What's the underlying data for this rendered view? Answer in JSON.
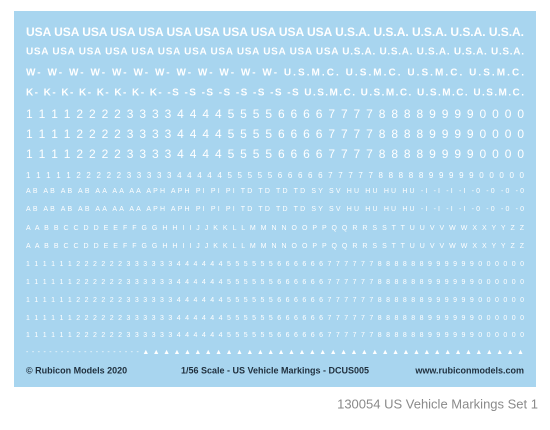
{
  "sheet": {
    "rows": [
      "USA USA USA USA USA USA USA USA USA USA USA U.S.A. U.S.A. U.S.A. U.S.A. U.S.A.",
      "USA USA USA USA USA USA USA USA USA USA USA USA U.S.A. U.S.A. U.S.A. U.S.A. U.S.A.",
      "W- W- W- W- W- W- W- W- W- W- W- W- U.S.M.C. U.S.M.C. U.S.M.C. U.S.M.C.",
      "K- K- K- K- K- K- K- K- -S -S -S -S -S -S -S -S U.S.M.C. U.S.M.C. U.S.M.C. U.S.M.C.",
      "1 1 1 1 2 2 2 2 3 3 3 3 4 4 4 4 5 5 5 5 6 6 6 6 7 7 7 7 8 8 8 8 9 9 9 9 0 0 0 0",
      "1 1 1 1 2 2 2 2 3 3 3 3 4 4 4 4 5 5 5 5 6 6 6 6 7 7 7 7 8 8 8 8 9 9 9 9 0 0 0 0",
      "1 1 1 1 2 2 2 2 3 3 3 3 4 4 4 4 5 5 5 5 6 6 6 6 7 7 7 7 8 8 8 8 9 9 9 9 0 0 0 0",
      "1 1 1 1 1 2 2 2 2 2 3 3 3 3 3 4 4 4 4 4 5 5 5 5 5 6 6 6 6 6 7 7 7 7 7 8 8 8 8 8 9 9 9 9 9 0 0 0 0 0",
      "AB AB AB AB AA AA AA APH APH PI PI PI TD TD TD TD SY SV HU HU HU HU -I -I -I -I -0 -0 -0 -0",
      "AB AB AB AB AA AA AA APH APH PI PI PI TD TD TD TD SY SV HU HU HU HU -I -I -I -I -0 -0 -0 -0",
      "A A B B C C D D E E F F G G H H I I J J K K L L M M N N O O P P Q Q R R S S T T U U V V W W X X Y Y Z Z",
      "A A B B C C D D E E F F G G H H I I J J K K L L M M N N O O P P Q Q R R S S T T U U V V W W X X Y Y Z Z",
      "1 1 1 1 1 1 2 2 2 2 2 2 3 3 3 3 3 3 4 4 4 4 4 4 5 5 5 5 5 5 6 6 6 6 6 6 7 7 7 7 7 7 8 8 8 8 8 8 9 9 9 9 9 9 0 0 0 0 0 0",
      "1 1 1 1 1 1 2 2 2 2 2 2 3 3 3 3 3 3 4 4 4 4 4 4 5 5 5 5 5 5 6 6 6 6 6 6 7 7 7 7 7 7 8 8 8 8 8 8 9 9 9 9 9 9 0 0 0 0 0 0",
      "1 1 1 1 1 1 2 2 2 2 2 2 3 3 3 3 3 3 4 4 4 4 4 4 5 5 5 5 5 5 6 6 6 6 6 6 7 7 7 7 7 7 8 8 8 8 8 8 9 9 9 9 9 9 0 0 0 0 0 0",
      "1 1 1 1 1 1 2 2 2 2 2 2 3 3 3 3 3 3 4 4 4 4 4 4 5 5 5 5 5 5 6 6 6 6 6 6 7 7 7 7 7 7 8 8 8 8 8 8 9 9 9 9 9 9 0 0 0 0 0 0",
      "1 1 1 1 1 1 2 2 2 2 2 2 3 3 3 3 3 3 4 4 4 4 4 4 5 5 5 5 5 5 6 6 6 6 6 6 7 7 7 7 7 7 8 8 8 8 8 8 9 9 9 9 9 9 0 0 0 0 0 0",
      "- - - - - - - - - - - - - - - - - - - - ▲ ▲ ▲ ▲ ▲ ▲ ▲ ▲ ▲ ▲ ▲ ▲ ▲ ▲ ▲ ▲ ▲ ▲ ▲ ▲ ▲ ▲ ▲ ▲ ▲ ▲ ▲ ▲ ▲ ▲ ▲ ▲ ▲ ▲ ▲ ▲ ▲"
    ],
    "footer": {
      "copyright": "© Rubicon Models 2020",
      "scale": "1/56 Scale - US Vehicle Markings - DCUS005",
      "website": "www.rubiconmodels.com"
    }
  },
  "caption": "130054  US Vehicle Markings Set 1"
}
